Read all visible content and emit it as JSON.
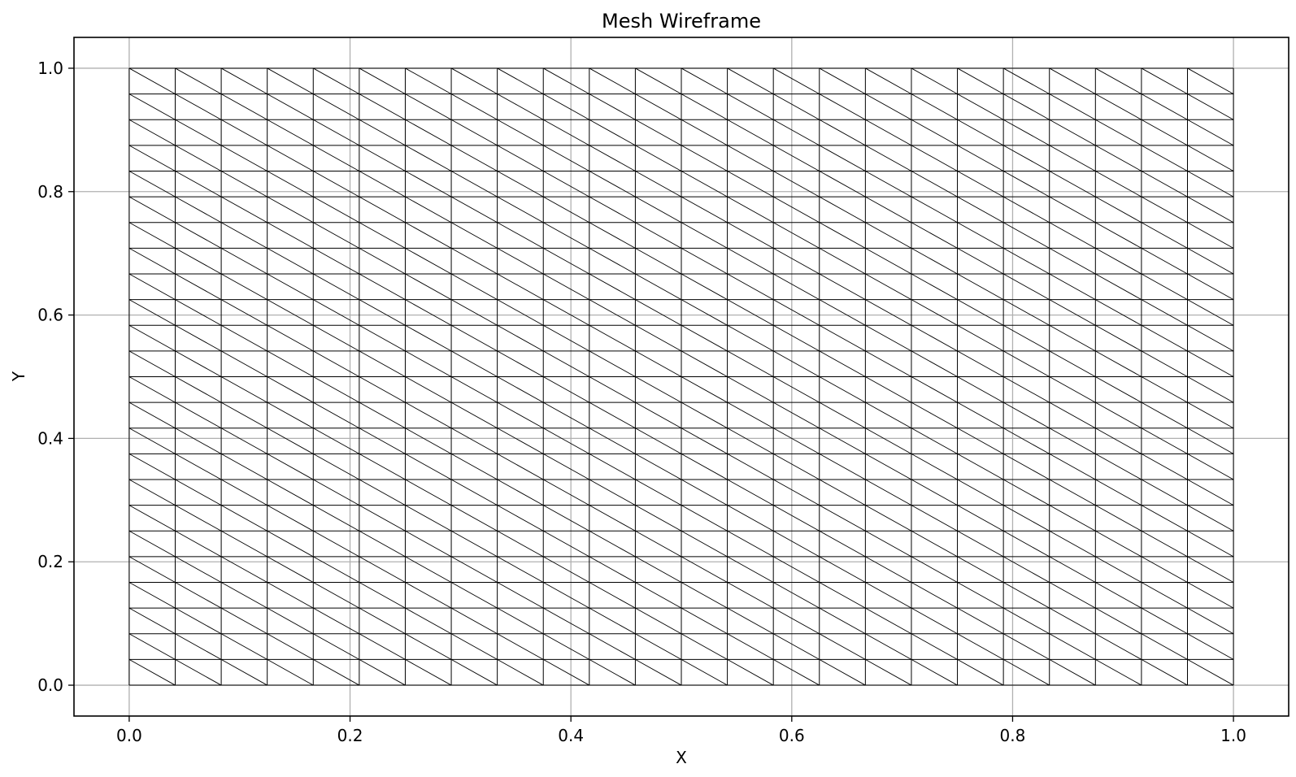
{
  "chart_data": {
    "type": "mesh_wireframe",
    "title": "Mesh Wireframe",
    "xlabel": "X",
    "ylabel": "Y",
    "xlim": [
      -0.05,
      1.05
    ],
    "ylim": [
      -0.05,
      1.05
    ],
    "x_ticks": [
      "0.0",
      "0.2",
      "0.4",
      "0.6",
      "0.8",
      "1.0"
    ],
    "y_ticks": [
      "0.0",
      "0.2",
      "0.4",
      "0.6",
      "0.8",
      "1.0"
    ],
    "grid": true,
    "mesh": {
      "x_min": 0.0,
      "x_max": 1.0,
      "y_min": 0.0,
      "y_max": 1.0,
      "nx": 24,
      "ny": 24,
      "diagonal": "top-left to bottom-right"
    },
    "colors": {
      "mesh_line": "#000000",
      "grid_line": "#b0b0b0",
      "axes_frame": "#000000"
    }
  }
}
